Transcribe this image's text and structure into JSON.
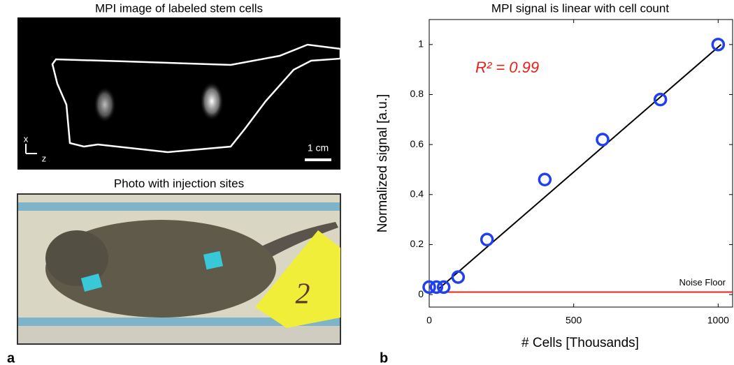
{
  "panels": {
    "mpi_title": "MPI image of labeled stem cells",
    "photo_title": "Photo with injection sites",
    "axis_x": "x",
    "axis_z": "z",
    "scale_bar": "1 cm",
    "tape_number": "2",
    "label_a": "a",
    "label_b": "b"
  },
  "chart_data": {
    "type": "scatter",
    "title": "MPI signal is linear with cell count",
    "x_label": "# Cells [Thousands]",
    "y_label": "Normalized signal [a.u.]",
    "annotation": "R² = 0.99",
    "x": [
      0,
      25,
      50,
      100,
      200,
      400,
      600,
      800,
      1000
    ],
    "values": [
      0.03,
      0.03,
      0.03,
      0.07,
      0.22,
      0.46,
      0.62,
      0.78,
      1.0
    ],
    "color": "#1f3ff0",
    "fit_line": {
      "x": [
        30,
        1010
      ],
      "values": [
        0.02,
        1.0
      ],
      "color": "#000000"
    },
    "noise_floor": {
      "value": 0.01,
      "label": "Noise Floor",
      "color": "#e8221a"
    },
    "xlim": [
      0,
      1050
    ],
    "ylim": [
      -0.05,
      1.1
    ],
    "xticks": [
      0,
      500,
      1000
    ],
    "yticks": [
      0,
      0.2,
      0.4,
      0.6,
      0.8,
      1
    ],
    "grid": false
  }
}
